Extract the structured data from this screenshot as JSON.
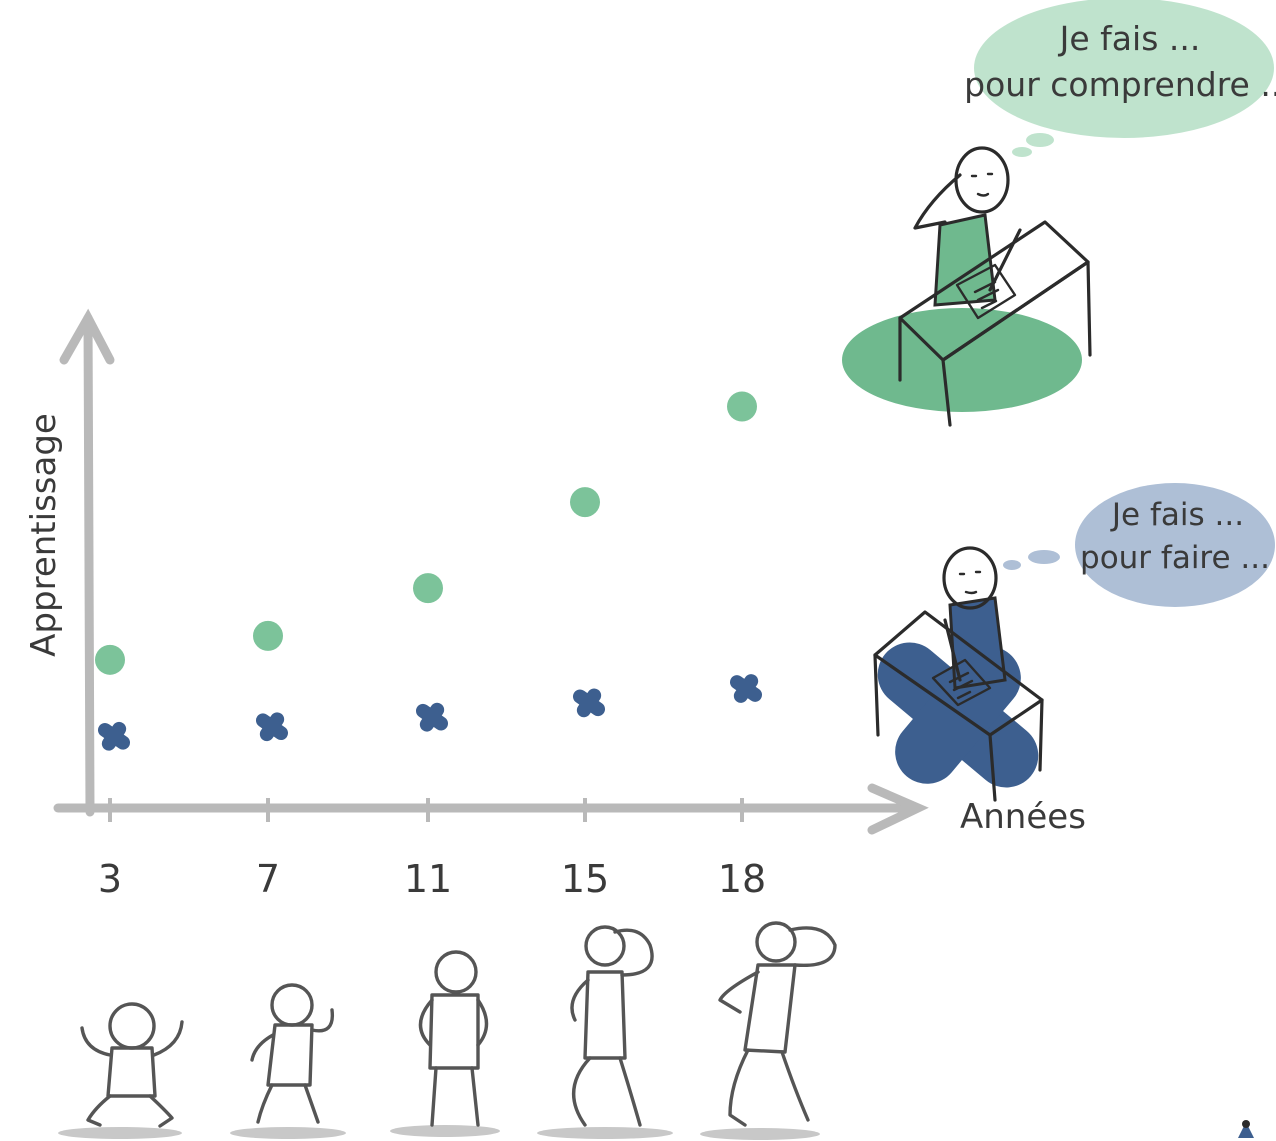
{
  "chart_data": {
    "type": "scatter",
    "title": "",
    "xlabel": "Années",
    "ylabel": "Apprentissage",
    "x": [
      3,
      7,
      11,
      15,
      18
    ],
    "tick_labels": [
      "3",
      "7",
      "11",
      "15",
      "18"
    ],
    "ylim": [
      0,
      10
    ],
    "grid": false,
    "legend": "none",
    "series": [
      {
        "marker": "circle",
        "color": "#7cc39a",
        "values": [
          3.1,
          3.6,
          4.6,
          6.4,
          8.4
        ]
      },
      {
        "marker": "cross",
        "color": "#3d5f8f",
        "values": [
          1.5,
          1.7,
          1.9,
          2.2,
          2.5
        ]
      }
    ]
  },
  "bubbles": {
    "top": {
      "line1": "Je fais ...",
      "line2": "pour comprendre ...",
      "color": "#bfe3cd"
    },
    "bottom": {
      "line1": "Je fais ...",
      "line2": "pour faire ...",
      "color": "#aebfd6"
    }
  },
  "colors": {
    "axis": "#b9b9b9",
    "green_blob": "#6fb98e",
    "blue_blob": "#3d5f8f"
  },
  "icons": {
    "top_character": "student-at-desk-icon",
    "bottom_character": "student-at-desk-icon",
    "kids": "stick-figure-icon",
    "corner_logo": "logo-icon"
  }
}
